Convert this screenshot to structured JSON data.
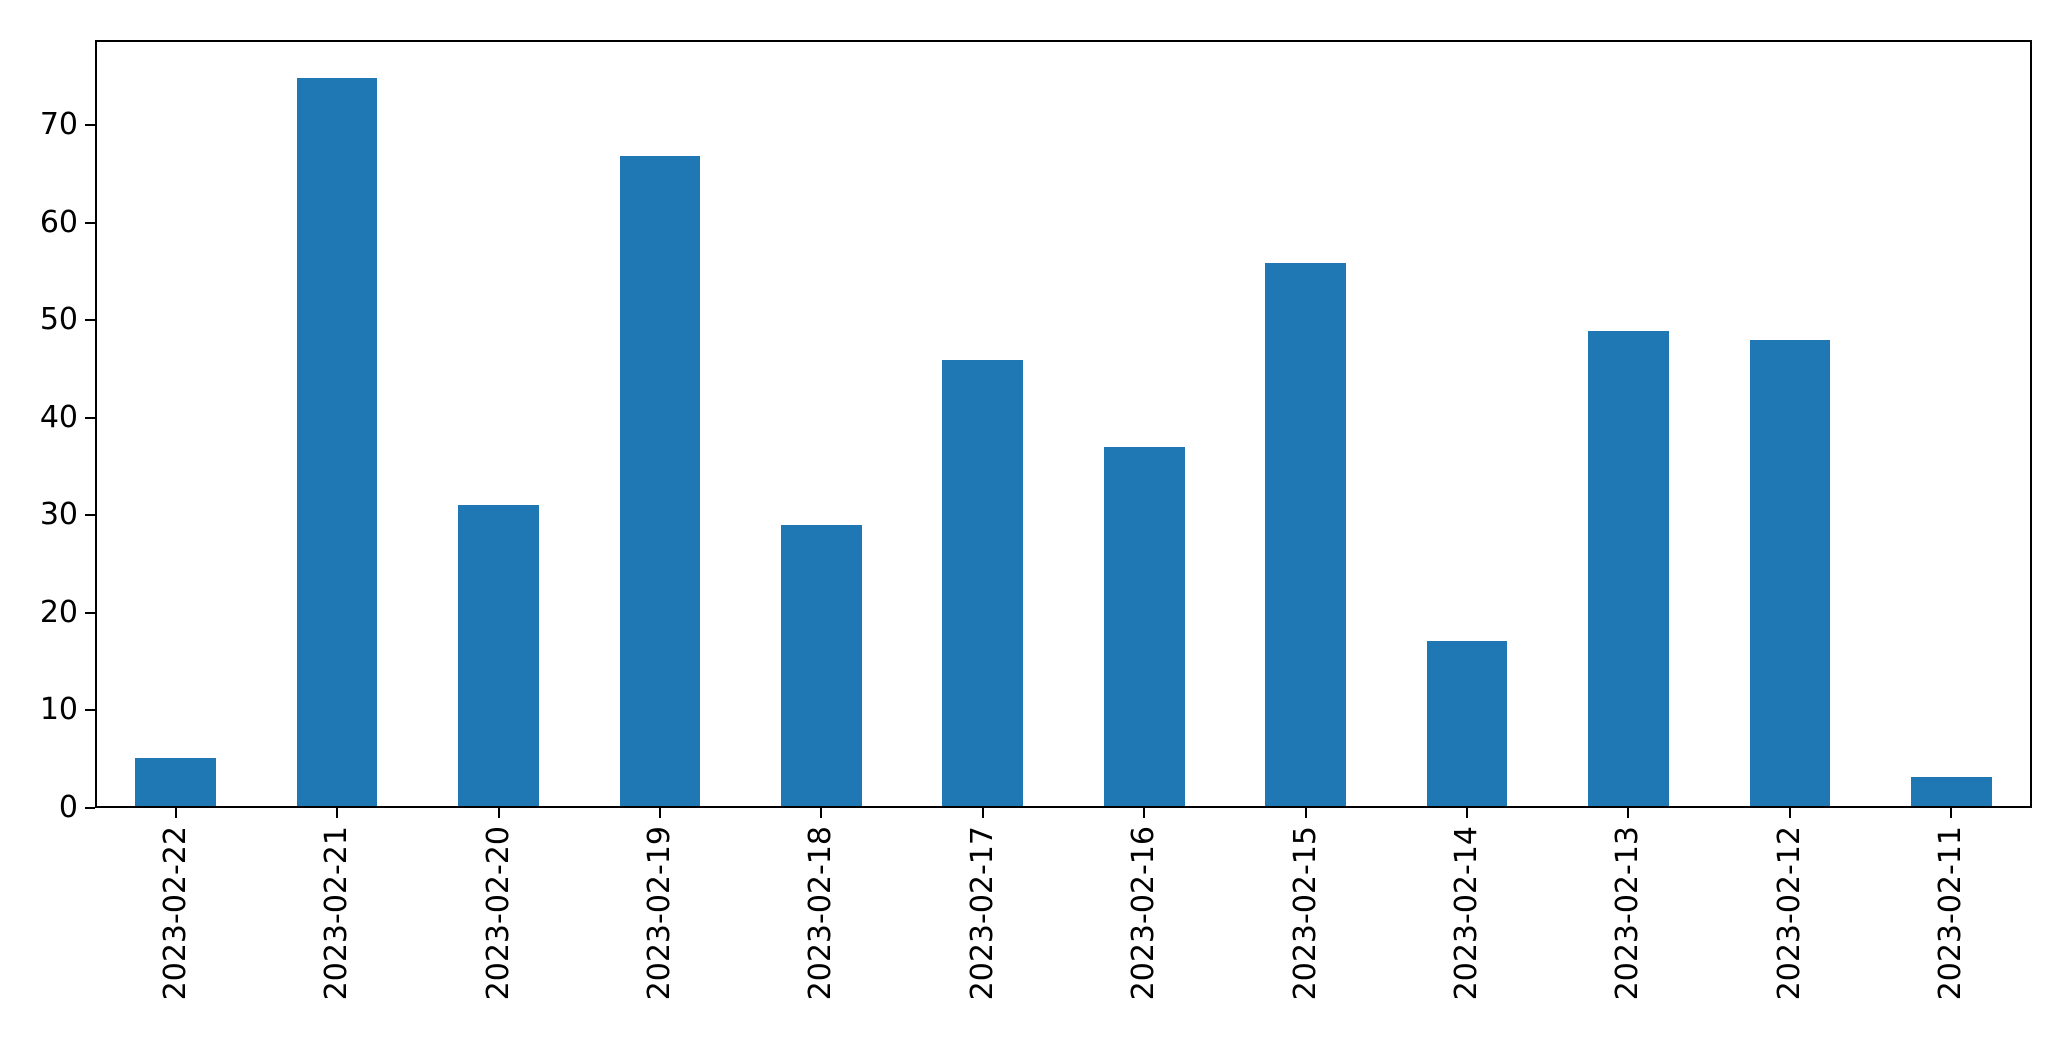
{
  "chart_data": {
    "type": "bar",
    "title": "",
    "xlabel": "",
    "ylabel": "",
    "categories": [
      "2023-02-22",
      "2023-02-21",
      "2023-02-20",
      "2023-02-19",
      "2023-02-18",
      "2023-02-17",
      "2023-02-16",
      "2023-02-15",
      "2023-02-14",
      "2023-02-13",
      "2023-02-12",
      "2023-02-11"
    ],
    "values": [
      5,
      75,
      31,
      67,
      29,
      46,
      37,
      56,
      17,
      49,
      48,
      3
    ],
    "yticks": [
      0,
      10,
      20,
      30,
      40,
      50,
      60,
      70
    ],
    "ylim": [
      0,
      78.75
    ],
    "bar_width_fraction": 0.5,
    "x_tick_rotation_deg": 90,
    "grid": false,
    "legend_position": "none",
    "colors": {
      "bar": "#1f77b4",
      "spine": "#000000",
      "tick": "#000000",
      "label": "#000000",
      "background": "#ffffff"
    }
  }
}
